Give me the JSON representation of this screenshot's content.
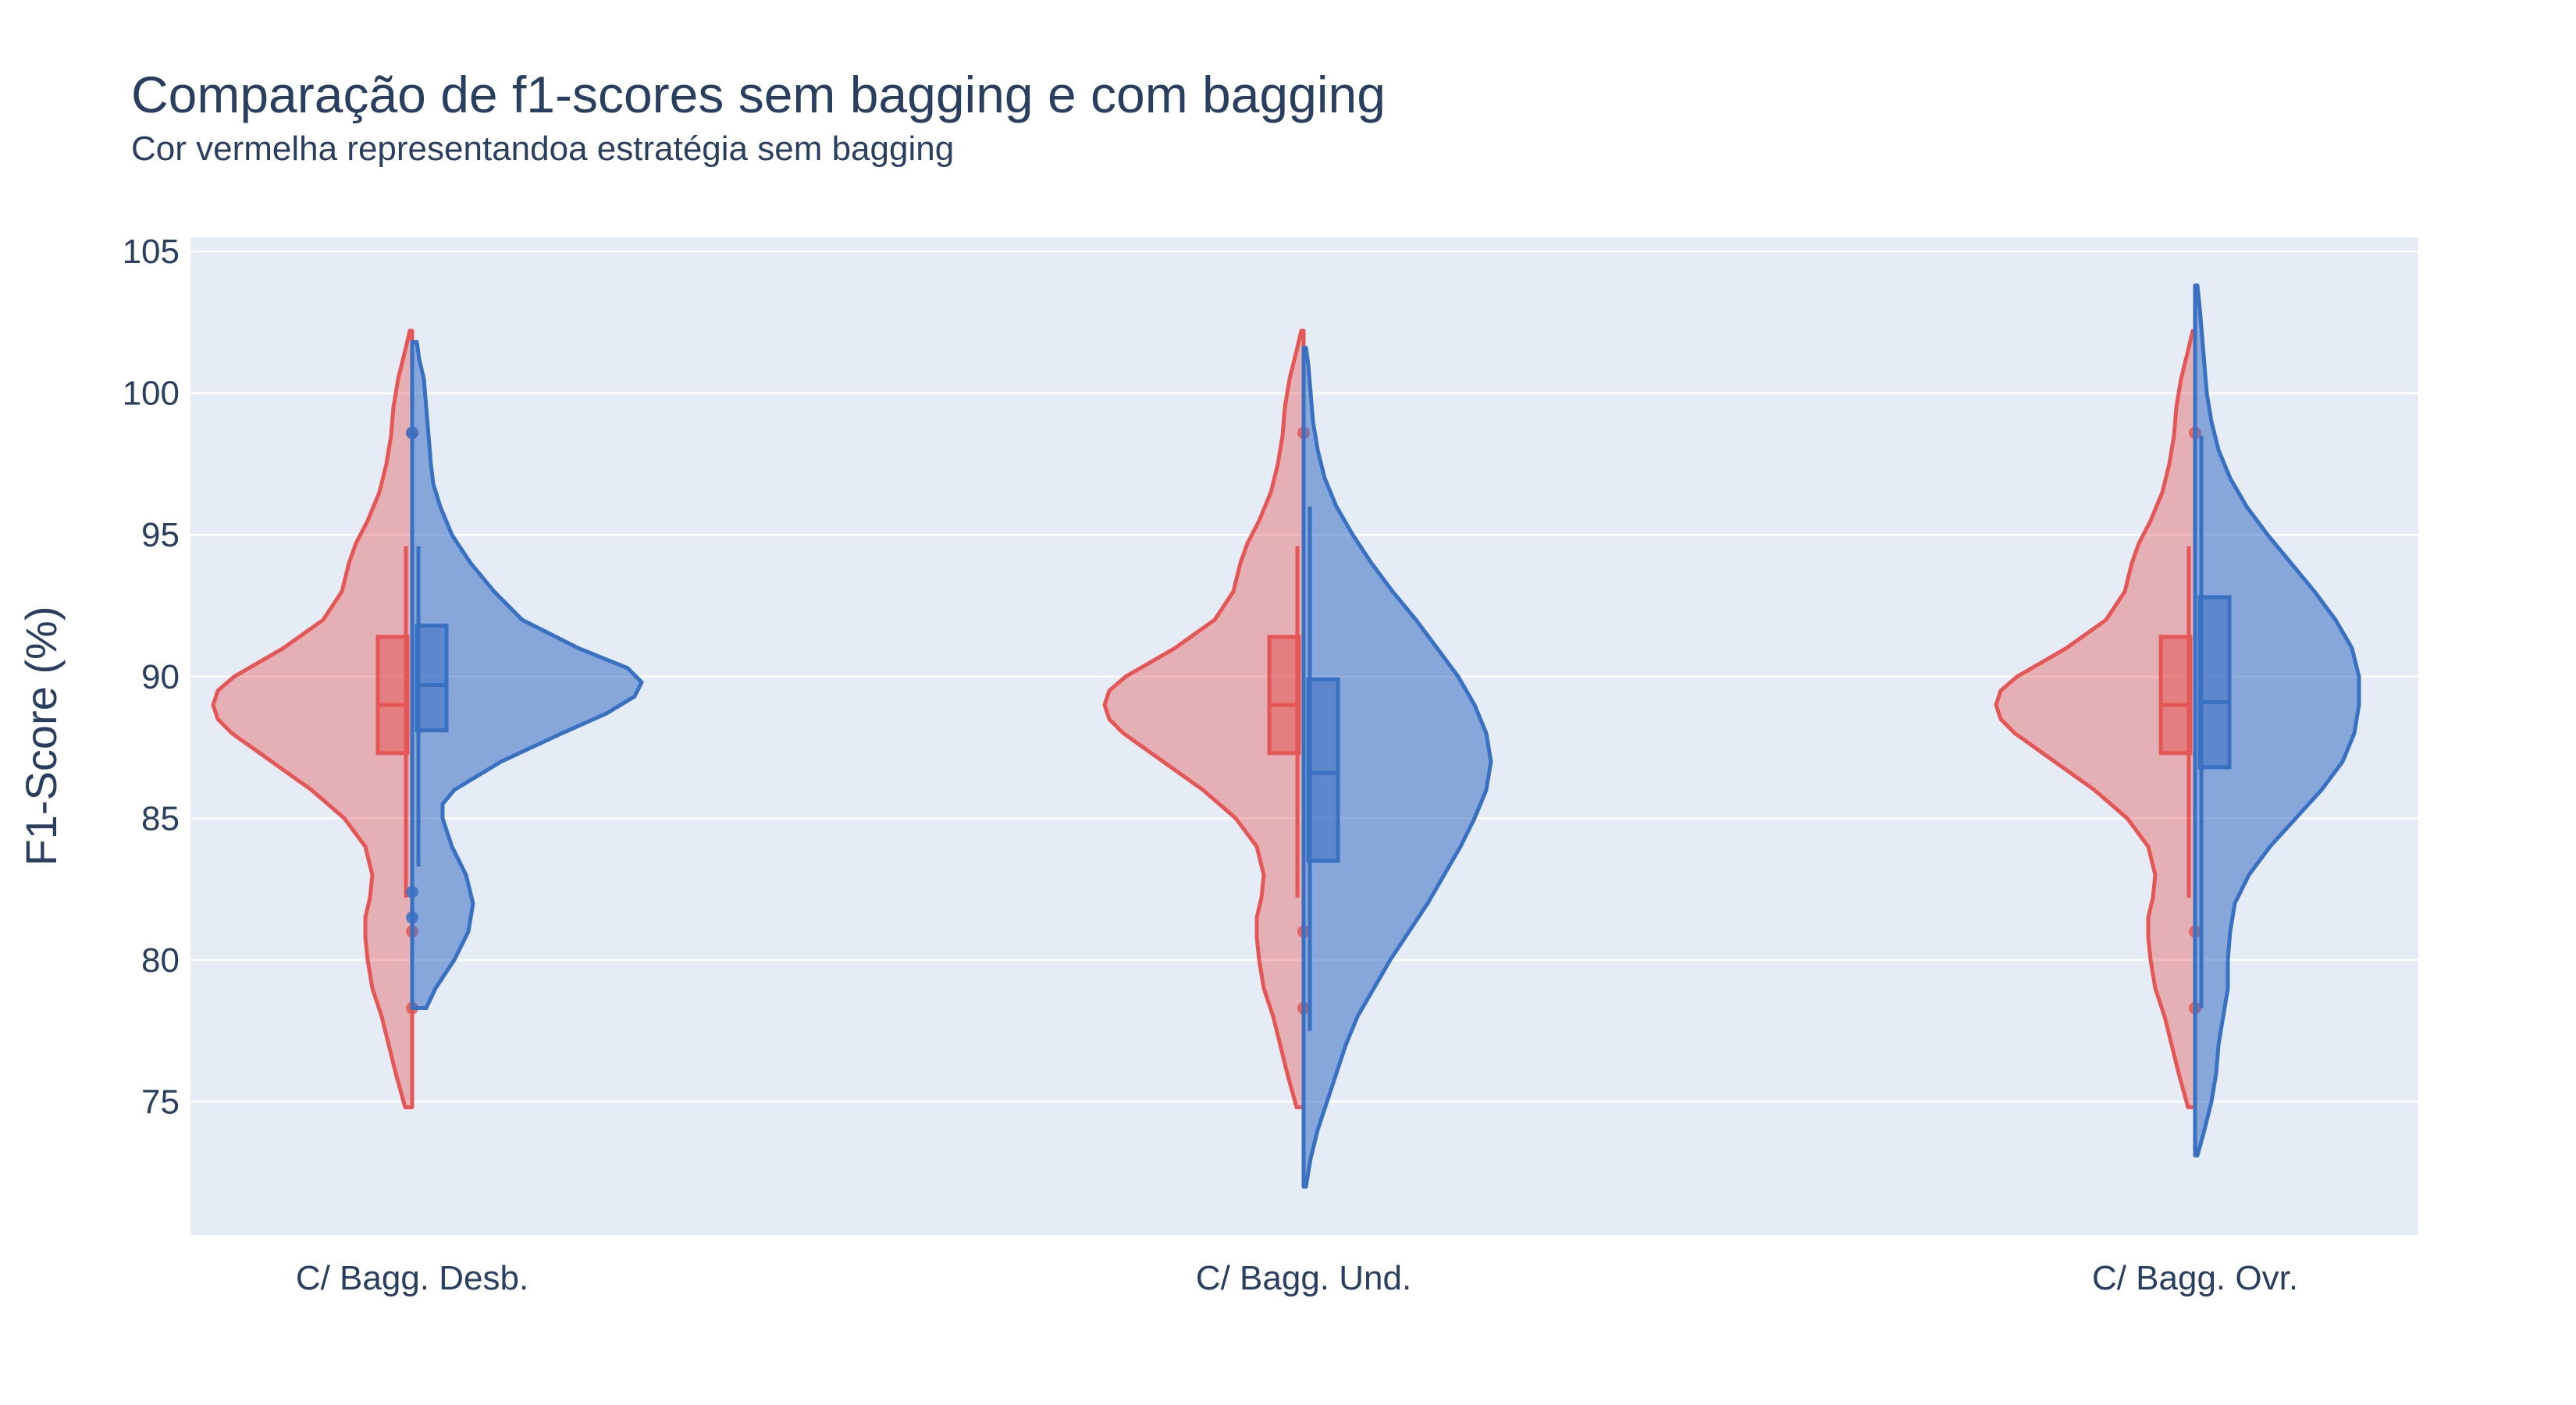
{
  "title": "Comparação de f1-scores sem bagging e com bagging",
  "subtitle": "Cor vermelha representandoa estratégia sem bagging",
  "chart_data": {
    "type": "violin",
    "title": "Comparação de f1-scores sem bagging e com bagging",
    "subtitle": "Cor vermelha representandoa estratégia sem bagging",
    "xlabel": "",
    "ylabel": "F1-Score (%)",
    "ylim": [
      70.3,
      105.5
    ],
    "yticks": [
      75,
      80,
      85,
      90,
      95,
      100,
      105
    ],
    "categories": [
      "C/ Bagg. Desb.",
      "C/ Bagg. Und.",
      "C/ Bagg. Ovr."
    ],
    "grid": true,
    "legend": "none",
    "background": "#e5ecf6",
    "series": [
      {
        "side": "negative",
        "color": "#e45756",
        "fill": "rgba(228,87,86,0.40)",
        "groups": [
          {
            "range": [
              74.8,
              102.2
            ],
            "density": [
              [
                74.8,
                0.03
              ],
              [
                76,
                0.07
              ],
              [
                77,
                0.1
              ],
              [
                78,
                0.13
              ],
              [
                79,
                0.17
              ],
              [
                80,
                0.19
              ],
              [
                80.8,
                0.2
              ],
              [
                81.5,
                0.2
              ],
              [
                82.2,
                0.18
              ],
              [
                83,
                0.17
              ],
              [
                84,
                0.2
              ],
              [
                85,
                0.29
              ],
              [
                86,
                0.43
              ],
              [
                87,
                0.6
              ],
              [
                88,
                0.77
              ],
              [
                88.5,
                0.83
              ],
              [
                89,
                0.85
              ],
              [
                89.5,
                0.83
              ],
              [
                90,
                0.76
              ],
              [
                91,
                0.55
              ],
              [
                92,
                0.38
              ],
              [
                93,
                0.3
              ],
              [
                94,
                0.27
              ],
              [
                94.7,
                0.24
              ],
              [
                95.5,
                0.19
              ],
              [
                96.5,
                0.14
              ],
              [
                97.5,
                0.11
              ],
              [
                98.5,
                0.09
              ],
              [
                99.5,
                0.08
              ],
              [
                100.5,
                0.06
              ],
              [
                101.5,
                0.03
              ],
              [
                102.2,
                0.01
              ]
            ],
            "q1": 87.3,
            "median": 89.0,
            "q3": 91.4,
            "whisker_low": 82.2,
            "whisker_high": 94.6,
            "points": [
              98.6,
              81.0,
              78.3
            ]
          },
          {
            "range": [
              74.8,
              102.2
            ],
            "density": [
              [
                74.8,
                0.03
              ],
              [
                76,
                0.07
              ],
              [
                77,
                0.1
              ],
              [
                78,
                0.13
              ],
              [
                79,
                0.17
              ],
              [
                80,
                0.19
              ],
              [
                80.8,
                0.2
              ],
              [
                81.5,
                0.2
              ],
              [
                82.2,
                0.18
              ],
              [
                83,
                0.17
              ],
              [
                84,
                0.2
              ],
              [
                85,
                0.29
              ],
              [
                86,
                0.43
              ],
              [
                87,
                0.6
              ],
              [
                88,
                0.77
              ],
              [
                88.5,
                0.83
              ],
              [
                89,
                0.85
              ],
              [
                89.5,
                0.83
              ],
              [
                90,
                0.76
              ],
              [
                91,
                0.55
              ],
              [
                92,
                0.38
              ],
              [
                93,
                0.3
              ],
              [
                94,
                0.27
              ],
              [
                94.7,
                0.24
              ],
              [
                95.5,
                0.19
              ],
              [
                96.5,
                0.14
              ],
              [
                97.5,
                0.11
              ],
              [
                98.5,
                0.09
              ],
              [
                99.5,
                0.08
              ],
              [
                100.5,
                0.06
              ],
              [
                101.5,
                0.03
              ],
              [
                102.2,
                0.01
              ]
            ],
            "q1": 87.3,
            "median": 89.0,
            "q3": 91.4,
            "whisker_low": 82.2,
            "whisker_high": 94.6,
            "points": [
              98.6,
              81.0,
              78.3
            ]
          },
          {
            "range": [
              74.8,
              102.2
            ],
            "density": [
              [
                74.8,
                0.03
              ],
              [
                76,
                0.07
              ],
              [
                77,
                0.1
              ],
              [
                78,
                0.13
              ],
              [
                79,
                0.17
              ],
              [
                80,
                0.19
              ],
              [
                80.8,
                0.2
              ],
              [
                81.5,
                0.2
              ],
              [
                82.2,
                0.18
              ],
              [
                83,
                0.17
              ],
              [
                84,
                0.2
              ],
              [
                85,
                0.29
              ],
              [
                86,
                0.43
              ],
              [
                87,
                0.6
              ],
              [
                88,
                0.77
              ],
              [
                88.5,
                0.83
              ],
              [
                89,
                0.85
              ],
              [
                89.5,
                0.83
              ],
              [
                90,
                0.76
              ],
              [
                91,
                0.55
              ],
              [
                92,
                0.38
              ],
              [
                93,
                0.3
              ],
              [
                94,
                0.27
              ],
              [
                94.7,
                0.24
              ],
              [
                95.5,
                0.19
              ],
              [
                96.5,
                0.14
              ],
              [
                97.5,
                0.11
              ],
              [
                98.5,
                0.09
              ],
              [
                99.5,
                0.08
              ],
              [
                100.5,
                0.06
              ],
              [
                101.5,
                0.03
              ],
              [
                102.2,
                0.01
              ]
            ],
            "q1": 87.3,
            "median": 89.0,
            "q3": 91.4,
            "whisker_low": 82.2,
            "whisker_high": 94.6,
            "points": [
              98.6,
              81.0,
              78.3
            ]
          }
        ]
      },
      {
        "side": "positive",
        "color": "#3a70c2",
        "fill": "rgba(58,112,194,0.55)",
        "groups": [
          {
            "range": [
              78.3,
              101.8
            ],
            "density": [
              [
                78.3,
                0.06
              ],
              [
                79,
                0.1
              ],
              [
                80,
                0.18
              ],
              [
                81,
                0.24
              ],
              [
                82,
                0.26
              ],
              [
                83,
                0.23
              ],
              [
                84,
                0.17
              ],
              [
                85,
                0.13
              ],
              [
                85.5,
                0.13
              ],
              [
                86,
                0.18
              ],
              [
                87,
                0.38
              ],
              [
                88,
                0.64
              ],
              [
                88.7,
                0.83
              ],
              [
                89.3,
                0.95
              ],
              [
                89.8,
                0.98
              ],
              [
                90.3,
                0.92
              ],
              [
                91,
                0.71
              ],
              [
                92,
                0.47
              ],
              [
                93,
                0.35
              ],
              [
                94,
                0.25
              ],
              [
                95,
                0.17
              ],
              [
                96,
                0.12
              ],
              [
                96.8,
                0.09
              ],
              [
                97.5,
                0.08
              ],
              [
                98.5,
                0.07
              ],
              [
                99.5,
                0.06
              ],
              [
                100.5,
                0.05
              ],
              [
                101.2,
                0.03
              ],
              [
                101.8,
                0.02
              ]
            ],
            "q1": 88.1,
            "median": 89.7,
            "q3": 91.8,
            "whisker_low": 83.3,
            "whisker_high": 94.6,
            "points": [
              98.6,
              82.4,
              81.5
            ]
          },
          {
            "range": [
              72.0,
              101.6
            ],
            "density": [
              [
                72.0,
                0.01
              ],
              [
                73,
                0.03
              ],
              [
                74,
                0.06
              ],
              [
                75,
                0.1
              ],
              [
                76,
                0.14
              ],
              [
                77,
                0.18
              ],
              [
                78,
                0.23
              ],
              [
                79,
                0.3
              ],
              [
                80,
                0.37
              ],
              [
                81,
                0.45
              ],
              [
                82,
                0.53
              ],
              [
                83,
                0.6
              ],
              [
                84,
                0.67
              ],
              [
                85,
                0.73
              ],
              [
                86,
                0.78
              ],
              [
                87,
                0.8
              ],
              [
                88,
                0.78
              ],
              [
                89,
                0.73
              ],
              [
                90,
                0.66
              ],
              [
                91,
                0.57
              ],
              [
                92,
                0.48
              ],
              [
                93,
                0.38
              ],
              [
                94,
                0.29
              ],
              [
                95,
                0.21
              ],
              [
                96,
                0.14
              ],
              [
                97,
                0.09
              ],
              [
                98,
                0.06
              ],
              [
                99,
                0.04
              ],
              [
                100,
                0.03
              ],
              [
                101,
                0.02
              ],
              [
                101.6,
                0.01
              ]
            ],
            "q1": 83.5,
            "median": 86.6,
            "q3": 89.9,
            "whisker_low": 77.5,
            "whisker_high": 96.0,
            "points": []
          },
          {
            "range": [
              73.1,
              103.8
            ],
            "density": [
              [
                73.1,
                0.01
              ],
              [
                74,
                0.04
              ],
              [
                75,
                0.07
              ],
              [
                76,
                0.09
              ],
              [
                77,
                0.1
              ],
              [
                78,
                0.12
              ],
              [
                79,
                0.14
              ],
              [
                80,
                0.14
              ],
              [
                81,
                0.15
              ],
              [
                82,
                0.17
              ],
              [
                83,
                0.23
              ],
              [
                84,
                0.32
              ],
              [
                85,
                0.43
              ],
              [
                86,
                0.54
              ],
              [
                87,
                0.63
              ],
              [
                88,
                0.68
              ],
              [
                89,
                0.7
              ],
              [
                90,
                0.7
              ],
              [
                91,
                0.67
              ],
              [
                92,
                0.6
              ],
              [
                93,
                0.51
              ],
              [
                94,
                0.41
              ],
              [
                95,
                0.31
              ],
              [
                96,
                0.22
              ],
              [
                97,
                0.15
              ],
              [
                98,
                0.1
              ],
              [
                99,
                0.07
              ],
              [
                100,
                0.05
              ],
              [
                101,
                0.04
              ],
              [
                102,
                0.03
              ],
              [
                103,
                0.02
              ],
              [
                103.8,
                0.01
              ]
            ],
            "q1": 86.8,
            "median": 89.1,
            "q3": 92.8,
            "whisker_low": 78.3,
            "whisker_high": 98.5,
            "points": []
          }
        ]
      }
    ]
  }
}
